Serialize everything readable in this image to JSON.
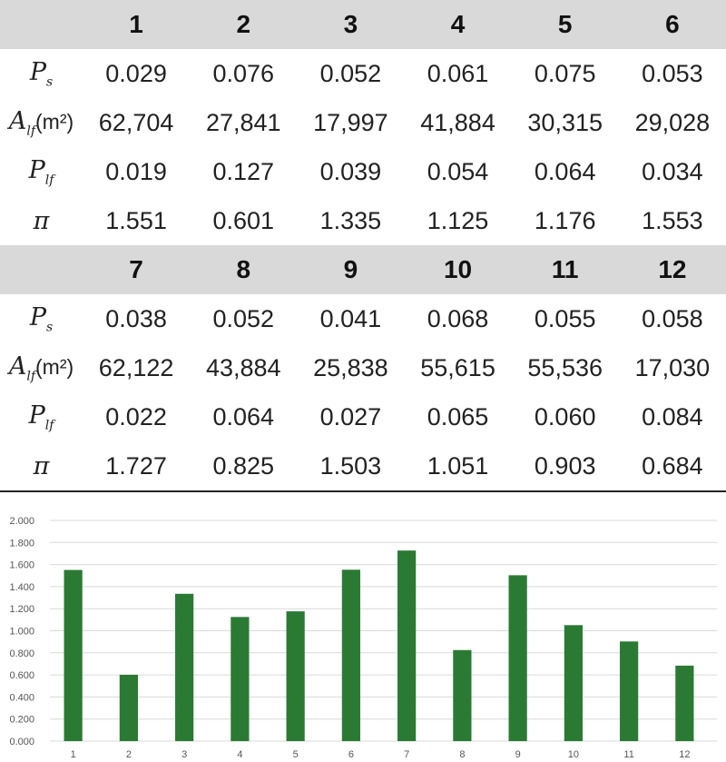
{
  "table": {
    "groups": [
      {
        "headers": [
          "1",
          "2",
          "3",
          "4",
          "5",
          "6"
        ],
        "rows": [
          {
            "label_main": "P",
            "label_sub": "s",
            "label_unit": "",
            "values": [
              "0.029",
              "0.076",
              "0.052",
              "0.061",
              "0.075",
              "0.053"
            ]
          },
          {
            "label_main": "A",
            "label_sub": "lf",
            "label_unit": "(m²)",
            "values": [
              "62,704",
              "27,841",
              "17,997",
              "41,884",
              "30,315",
              "29,028"
            ]
          },
          {
            "label_main": "P",
            "label_sub": "lf",
            "label_unit": "",
            "values": [
              "0.019",
              "0.127",
              "0.039",
              "0.054",
              "0.064",
              "0.034"
            ]
          },
          {
            "label_main": "π",
            "label_sub": "",
            "label_unit": "",
            "values": [
              "1.551",
              "0.601",
              "1.335",
              "1.125",
              "1.176",
              "1.553"
            ]
          }
        ]
      },
      {
        "headers": [
          "7",
          "8",
          "9",
          "10",
          "11",
          "12"
        ],
        "rows": [
          {
            "label_main": "P",
            "label_sub": "s",
            "label_unit": "",
            "values": [
              "0.038",
              "0.052",
              "0.041",
              "0.068",
              "0.055",
              "0.058"
            ]
          },
          {
            "label_main": "A",
            "label_sub": "lf",
            "label_unit": "(m²)",
            "values": [
              "62,122",
              "43,884",
              "25,838",
              "55,615",
              "55,536",
              "17,030"
            ]
          },
          {
            "label_main": "P",
            "label_sub": "lf",
            "label_unit": "",
            "values": [
              "0.022",
              "0.064",
              "0.027",
              "0.065",
              "0.060",
              "0.084"
            ]
          },
          {
            "label_main": "π",
            "label_sub": "",
            "label_unit": "",
            "values": [
              "1.727",
              "0.825",
              "1.503",
              "1.051",
              "0.903",
              "0.684"
            ]
          }
        ]
      }
    ]
  },
  "chart_data": {
    "type": "bar",
    "categories": [
      "1",
      "2",
      "3",
      "4",
      "5",
      "6",
      "7",
      "8",
      "9",
      "10",
      "11",
      "12"
    ],
    "values": [
      1.551,
      0.601,
      1.335,
      1.125,
      1.176,
      1.553,
      1.727,
      0.825,
      1.503,
      1.051,
      0.903,
      0.684
    ],
    "title": "",
    "xlabel": "",
    "ylabel": "",
    "ylim": [
      0,
      2.0
    ],
    "yticks": [
      "0.000",
      "0.200",
      "0.400",
      "0.600",
      "0.800",
      "1.000",
      "1.200",
      "1.400",
      "1.600",
      "1.800",
      "2.000"
    ],
    "grid": true,
    "bar_color": "#2b7a34",
    "grid_color": "#d9d9d9"
  }
}
